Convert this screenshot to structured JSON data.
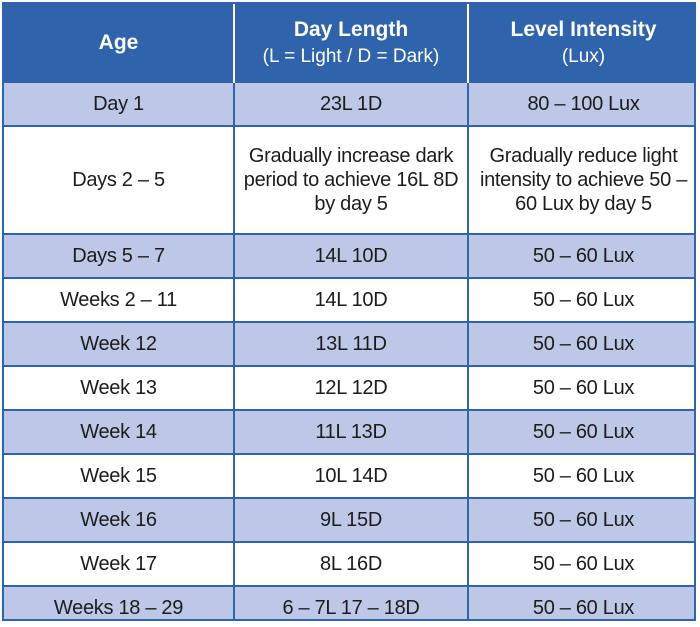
{
  "headers": {
    "age": "Age",
    "day_length": "Day Length",
    "day_length_sub": "(L = Light / D = Dark)",
    "intensity": "Level Intensity",
    "intensity_sub": "(Lux)"
  },
  "rows": [
    {
      "age": "Day 1",
      "day_length": "23L 1D",
      "intensity": "80 – 100 Lux"
    },
    {
      "age": "Days 2 – 5",
      "day_length": "Gradually increase dark period to achieve 16L 8D by day 5",
      "intensity": "Gradually reduce light intensity to achieve 50 – 60 Lux by day 5"
    },
    {
      "age": "Days 5 – 7",
      "day_length": "14L 10D",
      "intensity": "50 – 60 Lux"
    },
    {
      "age": "Weeks 2 – 11",
      "day_length": "14L 10D",
      "intensity": "50 – 60 Lux"
    },
    {
      "age": "Week 12",
      "day_length": "13L 11D",
      "intensity": "50 – 60 Lux"
    },
    {
      "age": "Week 13",
      "day_length": "12L 12D",
      "intensity": "50 – 60 Lux"
    },
    {
      "age": "Week 14",
      "day_length": "11L 13D",
      "intensity": "50 – 60 Lux"
    },
    {
      "age": "Week 15",
      "day_length": "10L 14D",
      "intensity": "50 – 60 Lux"
    },
    {
      "age": "Week 16",
      "day_length": "9L 15D",
      "intensity": "50 – 60 Lux"
    },
    {
      "age": "Week 17",
      "day_length": "8L 16D",
      "intensity": "50 – 60 Lux"
    },
    {
      "age": "Weeks 18 – 29",
      "day_length": "6 – 7L 17 – 18D",
      "intensity": "50 – 60 Lux"
    }
  ],
  "colors": {
    "header_bg": "#2f64ad",
    "shaded_row": "#bcc8e6"
  }
}
